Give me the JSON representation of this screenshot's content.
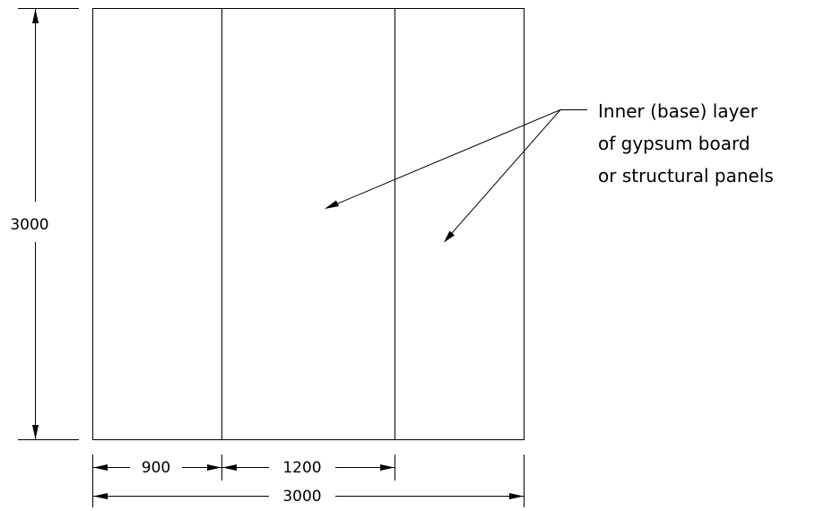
{
  "drawing": {
    "height_dimension": "3000",
    "bottom_dimensions": {
      "first_span": "900",
      "second_span": "1200",
      "overall": "3000"
    },
    "callout": {
      "lines": [
        "Inner (base) layer",
        "of gypsum board",
        "or structural panels"
      ]
    }
  }
}
